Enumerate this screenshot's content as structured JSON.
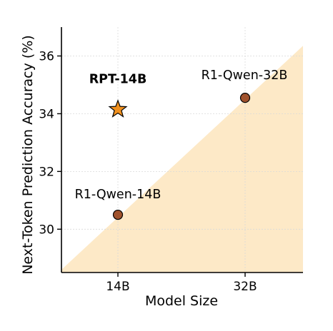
{
  "chart_data": {
    "type": "scatter",
    "xlabel": "Model Size",
    "ylabel": "Next-Token Prediction Accuracy (%)",
    "categories": [
      "14B",
      "32B"
    ],
    "ylim": [
      28.5,
      37.0
    ],
    "yticks": [
      30,
      32,
      34,
      36
    ],
    "grid": true,
    "points": [
      {
        "name": "RPT-14B",
        "x": "14B",
        "y": 34.15,
        "marker": "star",
        "color": "#f0901e",
        "label_bold": true
      },
      {
        "name": "R1-Qwen-14B",
        "x": "14B",
        "y": 30.5,
        "marker": "circle",
        "color": "#a0522d",
        "label_bold": false
      },
      {
        "name": "R1-Qwen-32B",
        "x": "32B",
        "y": 34.55,
        "marker": "circle",
        "color": "#a0522d",
        "label_bold": false
      }
    ],
    "shaded_region": {
      "color": "#fde9c7",
      "description": "triangular region below the diagonal line from lower-left to upper-right"
    }
  }
}
